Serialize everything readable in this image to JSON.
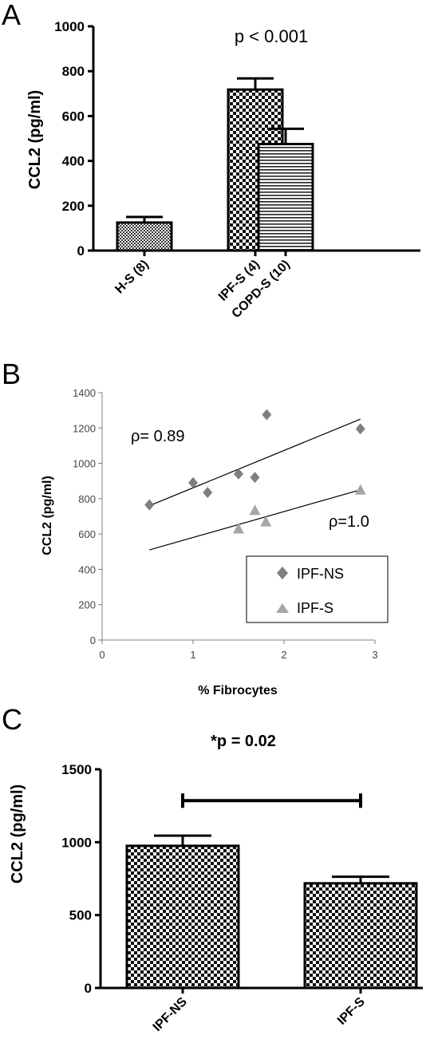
{
  "chart_data": [
    {
      "panel": "A",
      "type": "bar",
      "categories": [
        "H-S (8)",
        "IPF-S (4)",
        "COPD-S (10)"
      ],
      "values": [
        125,
        718,
        475
      ],
      "errors": [
        25,
        50,
        68
      ],
      "patterns": [
        "fine-check",
        "check",
        "hlines"
      ],
      "ylabel": "CCL2 (pg/ml)",
      "ylim": [
        0,
        1000
      ],
      "yticks": [
        0,
        200,
        400,
        600,
        800,
        1000
      ],
      "annotation": "p < 0.001"
    },
    {
      "panel": "B",
      "type": "scatter",
      "xlabel": "% Fibrocytes",
      "ylabel": "CCL2 (pg/ml)",
      "xlim": [
        0,
        3
      ],
      "ylim": [
        0,
        1400
      ],
      "xticks": [
        0,
        1,
        2,
        3
      ],
      "yticks": [
        0,
        200,
        400,
        600,
        800,
        1000,
        1200,
        1400
      ],
      "legend_position": "bottom-right",
      "series": [
        {
          "name": "IPF-NS",
          "marker": "diamond",
          "x": [
            0.52,
            1.0,
            1.16,
            1.5,
            1.68,
            1.81,
            2.84
          ],
          "y": [
            765,
            890,
            835,
            940,
            920,
            1275,
            1195
          ],
          "fit_line": [
            [
              0.52,
              760
            ],
            [
              2.84,
              1250
            ]
          ],
          "annotation": "ρ= 0.89"
        },
        {
          "name": "IPF-S",
          "marker": "triangle",
          "x": [
            1.5,
            1.68,
            1.8,
            2.84
          ],
          "y": [
            630,
            735,
            670,
            850
          ],
          "fit_line": [
            [
              0.52,
              510
            ],
            [
              2.84,
              850
            ]
          ],
          "annotation": "ρ=1.0"
        }
      ]
    },
    {
      "panel": "C",
      "type": "bar",
      "title": "*p = 0.02",
      "categories": [
        "IPF-NS",
        "IPF-S"
      ],
      "values": [
        975,
        718
      ],
      "errors": [
        70,
        45
      ],
      "patterns": [
        "check",
        "check"
      ],
      "ylabel": "CCL2 (pg/ml)",
      "ylim": [
        0,
        1500
      ],
      "yticks": [
        0,
        500,
        1000,
        1500
      ],
      "significance_bracket_value": 1285
    }
  ]
}
